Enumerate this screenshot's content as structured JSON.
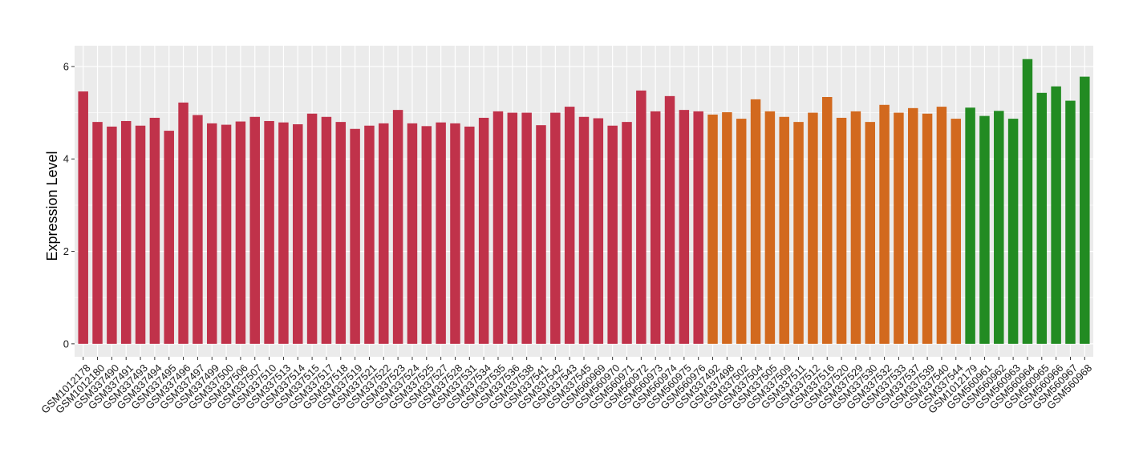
{
  "chart_data": {
    "type": "bar",
    "title": "",
    "xlabel": "",
    "ylabel": "Expression Level",
    "ylim": [
      -0.28,
      6.45
    ],
    "yticks": [
      0,
      2,
      4,
      6
    ],
    "grid": true,
    "legend": "none",
    "panel_background": "#EBEBEB",
    "grid_color": "#FFFFFF",
    "groups": [
      {
        "color": "#C0324A",
        "categories": [
          "GSM1012178",
          "GSM1012180",
          "GSM337490",
          "GSM337491",
          "GSM337493",
          "GSM337494",
          "GSM337495",
          "GSM337496",
          "GSM337497",
          "GSM337499",
          "GSM337500",
          "GSM337506",
          "GSM337507",
          "GSM337510",
          "GSM337513",
          "GSM337514",
          "GSM337515",
          "GSM337517",
          "GSM337518",
          "GSM337519",
          "GSM337521",
          "GSM337522",
          "GSM337523",
          "GSM337524",
          "GSM337525",
          "GSM337527",
          "GSM337528",
          "GSM337531",
          "GSM337534",
          "GSM337535",
          "GSM337536",
          "GSM337538",
          "GSM337541",
          "GSM337542",
          "GSM337543",
          "GSM337545",
          "GSM560969",
          "GSM560970",
          "GSM560971",
          "GSM560972",
          "GSM560973",
          "GSM560974",
          "GSM560975",
          "GSM560976"
        ],
        "values": [
          5.46,
          4.8,
          4.7,
          4.82,
          4.72,
          4.89,
          4.61,
          5.22,
          4.95,
          4.77,
          4.74,
          4.81,
          4.91,
          4.82,
          4.79,
          4.75,
          4.98,
          4.91,
          4.8,
          4.65,
          4.72,
          4.77,
          5.06,
          4.77,
          4.71,
          4.79,
          4.77,
          4.7,
          4.89,
          5.03,
          5.0,
          5.0,
          4.73,
          5.0,
          5.13,
          4.91,
          4.88,
          4.72,
          4.8,
          5.48,
          5.03,
          5.36,
          5.06,
          5.03
        ]
      },
      {
        "color": "#D2691E",
        "categories": [
          "GSM337492",
          "GSM337498",
          "GSM337502",
          "GSM337504",
          "GSM337505",
          "GSM337509",
          "GSM337511",
          "GSM337512",
          "GSM337516",
          "GSM337520",
          "GSM337529",
          "GSM337530",
          "GSM337532",
          "GSM337533",
          "GSM337537",
          "GSM337539",
          "GSM337540",
          "GSM337544"
        ],
        "values": [
          4.96,
          5.01,
          4.87,
          5.29,
          5.03,
          4.91,
          4.8,
          5.0,
          5.34,
          4.89,
          5.03,
          4.8,
          5.17,
          5.0,
          5.1,
          4.98,
          5.13,
          4.87
        ]
      },
      {
        "color": "#228B22",
        "categories": [
          "GSM1012179",
          "GSM560961",
          "GSM560962",
          "GSM560963",
          "GSM560964",
          "GSM560965",
          "GSM560966",
          "GSM560967",
          "GSM560968"
        ],
        "values": [
          5.11,
          4.93,
          5.04,
          4.87,
          6.16,
          5.43,
          5.57,
          5.26,
          5.78
        ]
      }
    ]
  }
}
